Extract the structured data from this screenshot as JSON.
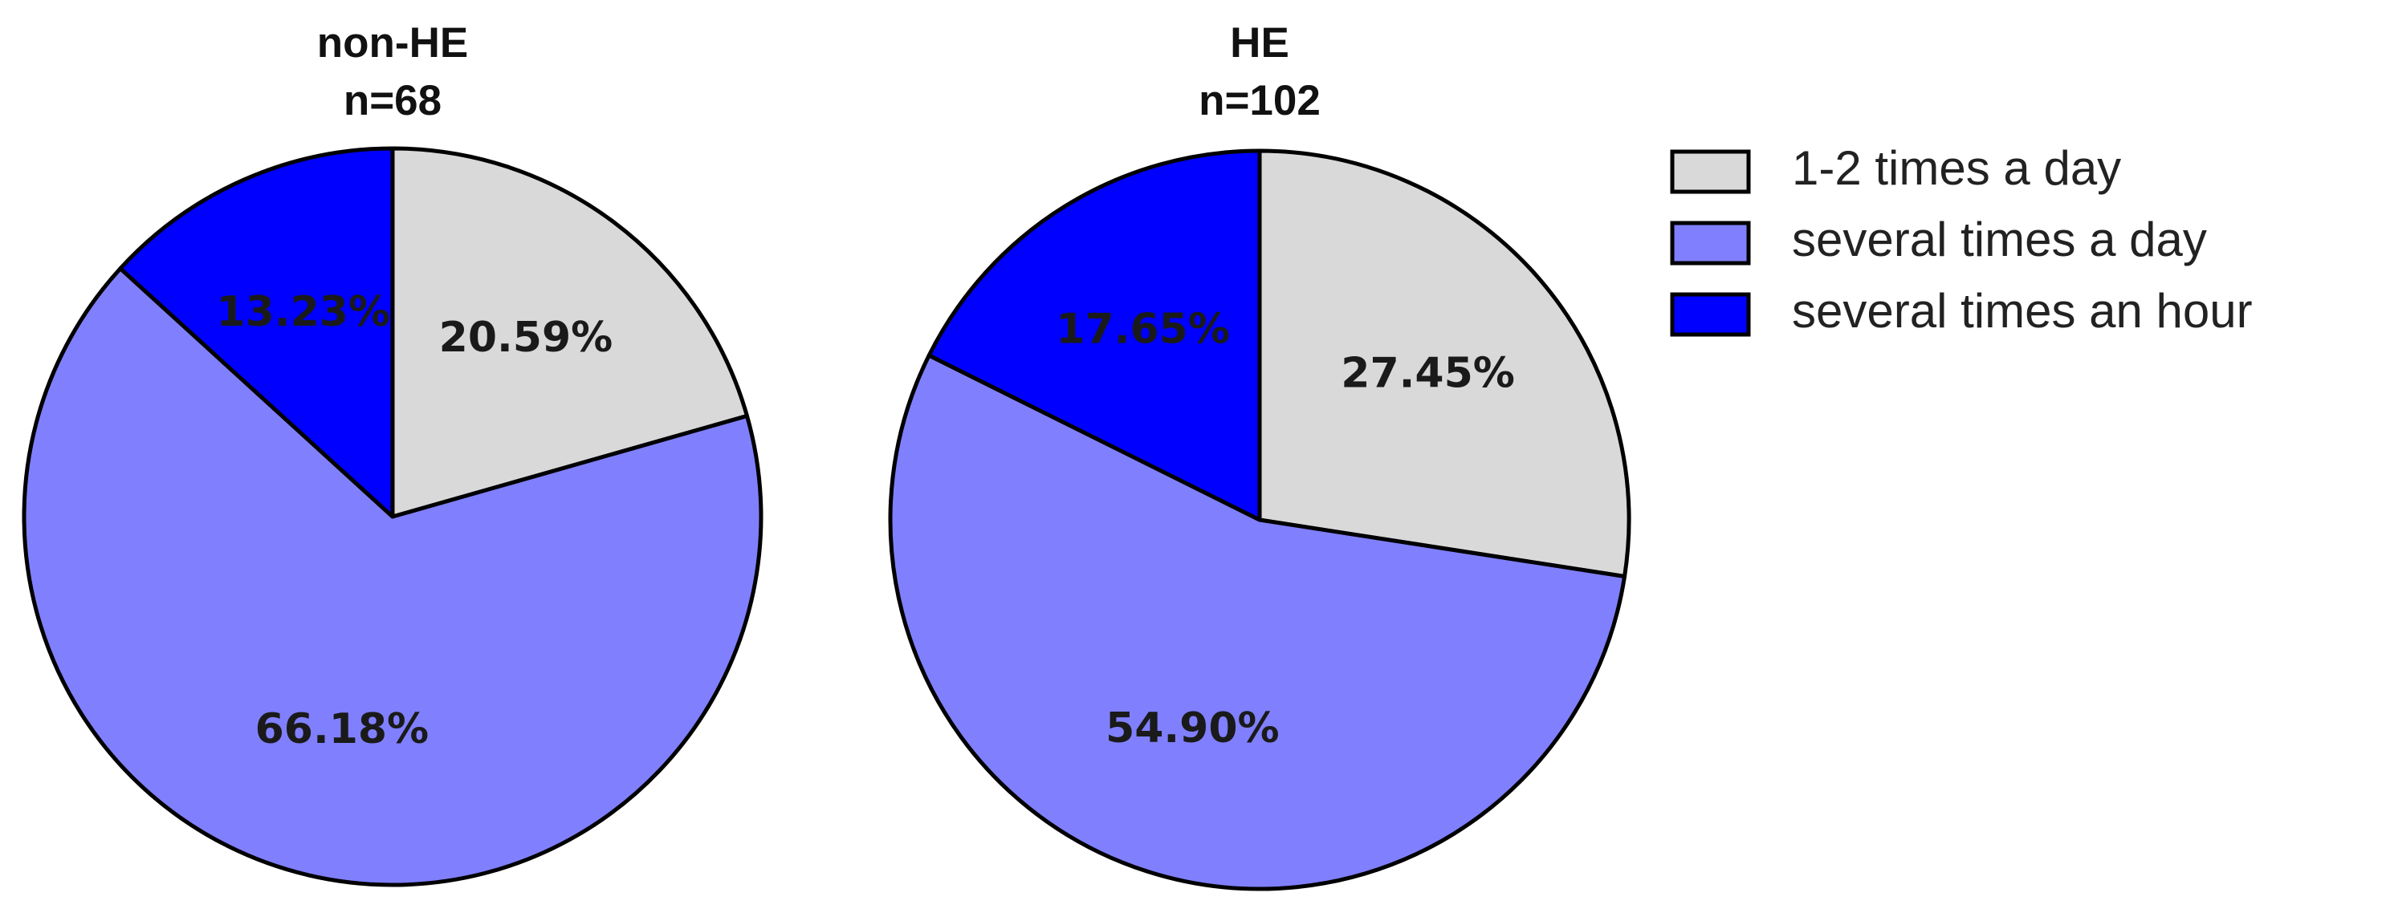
{
  "chart_data": [
    {
      "type": "pie",
      "title": "non-HE",
      "subtitle": "n=68",
      "categories": [
        "1-2 times a day",
        "several times a day",
        "several times an hour"
      ],
      "values": [
        20.59,
        66.18,
        13.23
      ],
      "value_labels": [
        "20.59%",
        "66.18%",
        "13.23%"
      ],
      "colors": [
        "#d9d9d9",
        "#8080ff",
        "#0000ff"
      ]
    },
    {
      "type": "pie",
      "title": "HE",
      "subtitle": "n=102",
      "categories": [
        "1-2 times a day",
        "several times a day",
        "several times an hour"
      ],
      "values": [
        27.45,
        54.9,
        17.65
      ],
      "value_labels": [
        "27.45%",
        "54.90%",
        "17.65%"
      ],
      "colors": [
        "#d9d9d9",
        "#8080ff",
        "#0000ff"
      ]
    }
  ]
}
